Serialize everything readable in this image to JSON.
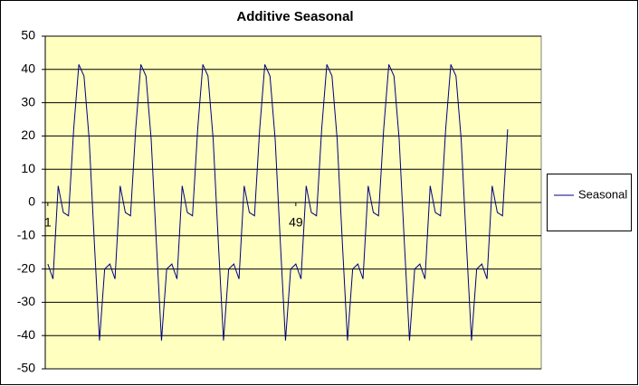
{
  "chart_data": {
    "type": "line",
    "title": "Additive Seasonal",
    "categories": [
      "1",
      null,
      null,
      null,
      null,
      null,
      null,
      null,
      null,
      null,
      null,
      null,
      null,
      null,
      null,
      null,
      null,
      null,
      null,
      null,
      null,
      null,
      null,
      null,
      null,
      null,
      null,
      null,
      null,
      null,
      null,
      null,
      null,
      null,
      null,
      null,
      null,
      null,
      null,
      null,
      null,
      null,
      null,
      null,
      null,
      null,
      null,
      null,
      "49",
      null,
      null,
      null,
      null,
      null,
      null,
      null,
      null,
      null,
      null,
      null,
      null,
      null,
      null,
      null,
      null,
      null,
      null,
      null,
      null,
      null,
      null,
      null,
      null,
      null,
      null,
      null,
      null,
      null,
      null,
      null,
      null,
      null,
      null,
      null,
      null,
      null,
      null,
      null,
      null,
      null,
      null,
      null,
      null,
      null,
      null,
      null
    ],
    "series": [
      {
        "name": "Seasonal",
        "color": "#000080",
        "values": [
          -18.5,
          -23,
          5,
          -3,
          -4,
          22,
          41.5,
          38,
          19,
          -12,
          -41.5,
          -20,
          -18.5,
          -23,
          5,
          -3,
          -4,
          22,
          41.5,
          38,
          19,
          -12,
          -41.5,
          -20,
          -18.5,
          -23,
          5,
          -3,
          -4,
          22,
          41.5,
          38,
          19,
          -12,
          -41.5,
          -20,
          -18.5,
          -23,
          5,
          -3,
          -4,
          22,
          41.5,
          38,
          19,
          -12,
          -41.5,
          -20,
          -18.5,
          -23,
          5,
          -3,
          -4,
          22,
          41.5,
          38,
          19,
          -12,
          -41.5,
          -20,
          -18.5,
          -23,
          5,
          -3,
          -4,
          22,
          41.5,
          38,
          19,
          -12,
          -41.5,
          -20,
          -18.5,
          -23,
          5,
          -3,
          -4,
          22,
          41.5,
          38,
          19,
          -12,
          -41.5,
          -20,
          -18.5,
          -23,
          5,
          -3,
          -4,
          22,
          null,
          null,
          null,
          null,
          null,
          null
        ]
      }
    ],
    "ylim": [
      -50,
      50
    ],
    "yticks": [
      -50,
      -40,
      -30,
      -20,
      -10,
      0,
      10,
      20,
      30,
      40,
      50
    ],
    "grid": true,
    "legend": "right"
  }
}
